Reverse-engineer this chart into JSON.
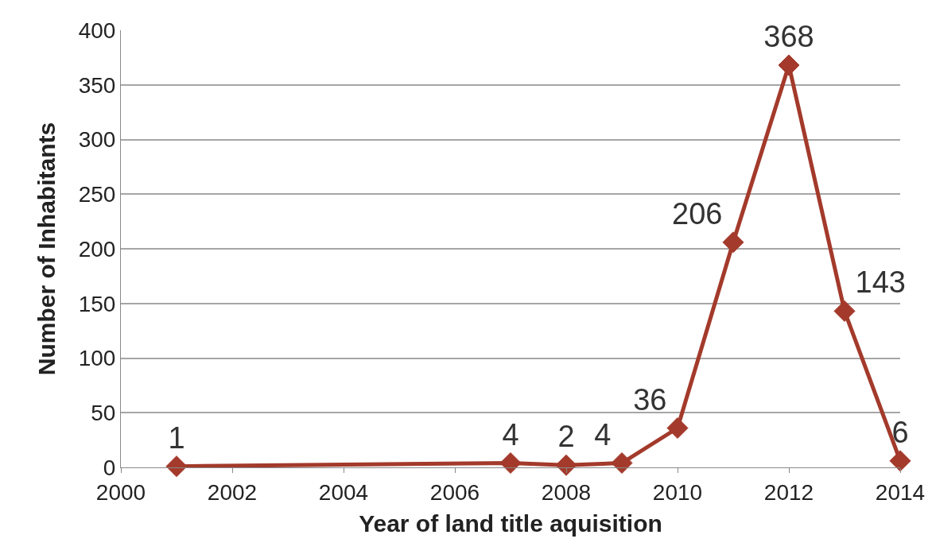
{
  "chart_data": {
    "type": "line",
    "xlabel": "Year of land title aquisition",
    "ylabel": "Number of Inhabitants",
    "x": [
      2001,
      2007,
      2008,
      2009,
      2010,
      2011,
      2012,
      2013,
      2014
    ],
    "series": [
      {
        "color": "#a33a2b",
        "values": [
          1,
          4,
          2,
          4,
          36,
          206,
          368,
          143,
          6
        ]
      }
    ],
    "xlim": [
      2000,
      2014
    ],
    "xticks": [
      2000,
      2002,
      2004,
      2006,
      2008,
      2010,
      2012,
      2014
    ],
    "ylim": [
      0,
      400
    ],
    "yticks": [
      0,
      50,
      100,
      150,
      200,
      250,
      300,
      350,
      400
    ],
    "grid": "y",
    "marker": "diamond",
    "line_style": "solid",
    "data_labels": true
  }
}
